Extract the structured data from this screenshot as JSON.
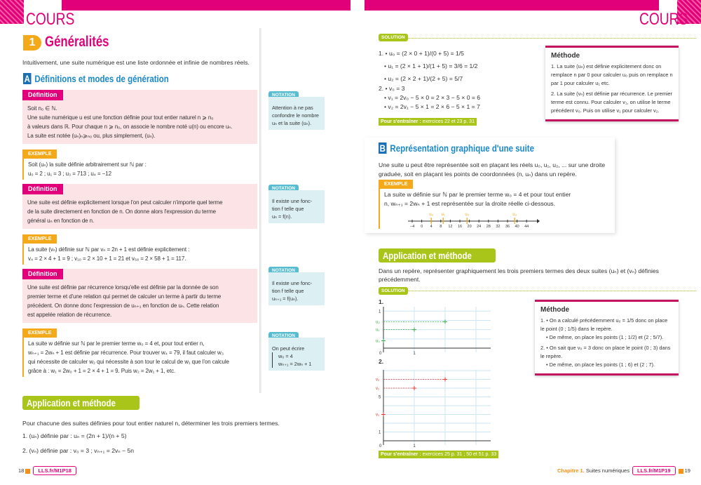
{
  "header": {
    "left_title": "COURS",
    "right_title": "COURS",
    "accent": "#e2007a"
  },
  "left": {
    "section_number": "1",
    "section_title": "Généralités",
    "intro": "Intuitivement, une suite numérique est une liste ordonnée et infinie de nombres réels.",
    "subsection_letter": "A",
    "subsection_title": "Définitions et modes de génération",
    "def_label": "Définition",
    "example_label": "EXEMPLE",
    "notation_label": "NOTATION",
    "def1": [
      "Soit n₀ ∈ ℕ.",
      "Une suite numérique u est une fonction définie pour tout entier naturel n ⩾ n₀",
      "à valeurs dans ℝ. Pour chaque n ⩾ n₀, on associe le nombre noté u(n) ou encore uₙ.",
      "La suite est notée (uₙ)ₙ⩾ₙ₀ ou, plus simplement, (uₙ)."
    ],
    "note1": [
      "Attention à ne pas",
      "confondre le nombre",
      "uₙ et la suite (uₙ)."
    ],
    "ex1": [
      "Soit (uₙ) la suite définie arbitrairement sur ℕ par :",
      "u₀ = 2 ; u₁ = 3 ; u₃ = 713 ; u₄ = −12"
    ],
    "def2": [
      "Une suite est définie explicitement lorsque l'on peut calculer n'importe quel terme",
      "de la suite directement en fonction de n. On donne alors l'expression du terme",
      "général uₙ en fonction de n."
    ],
    "note2": [
      "Il existe une fonc-",
      "tion f telle que",
      "uₙ = f(n)."
    ],
    "ex2": [
      "La suite (vₙ) définie sur ℕ par vₙ = 2n + 1 est définie explicitement :",
      "v₄ = 2 × 4 + 1 = 9 ; v₁₀ = 2 × 10 + 1 = 21 et v₅₈ = 2 × 58 + 1 = 117."
    ],
    "def3": [
      "Une suite est définie par récurrence lorsqu'elle est définie par la donnée de son",
      "premier terme et d'une relation qui permet de calculer un terme à partir du terme",
      "précédent. On donne donc l'expression de uₙ₊₁ en fonction de uₙ. Cette relation",
      "est appelée relation de récurrence."
    ],
    "note3": [
      "Il existe une fonc-",
      "tion f telle que",
      "uₙ₊₁ = f(uₙ)."
    ],
    "ex3": [
      "La suite w définie sur ℕ par le premier terme w₀ = 4 et, pour tout entier n,",
      "wₙ₊₁ = 2wₙ + 1 est définie par récurrence. Pour trouver w₄ = 79, il faut calculer w₃",
      "qui nécessite de calculer w₂ qui nécessite à son tour le calcul de w₁ que l'on calcule",
      "grâce à : w₁ = 2w₀ + 1 = 2 × 4 + 1 = 9. Puis w₂ = 2w₁ + 1, etc."
    ],
    "note4": [
      "On peut écrire",
      "w₀ = 4",
      "wₙ₊₁ = 2wₙ + 1"
    ],
    "app_title": "Application et méthode",
    "app_text": "Pour chacune des suites définies pour tout entier naturel n, déterminer les trois premiers termes.",
    "app_items": [
      "1. (uₙ) définie par : uₙ = (2n + 1)/(n + 5)",
      "2. (vₙ) définie par : v₀ = 3 ; vₙ₊₁ = 2vₙ − 5n"
    ],
    "footer": {
      "page": "18",
      "link": "LLS.fr/M1P18"
    }
  },
  "right": {
    "solution_label": "SOLUTION",
    "sol1": [
      "1. • u₀ = (2 × 0 + 1)/(0 + 5) = 1/5",
      "• u₁ = (2 × 1 + 1)/(1 + 5) = 3/6 = 1/2",
      "• u₂ = (2 × 2 + 1)/(2 + 5) = 5/7",
      "2. • v₀ = 3",
      "• v₁ = 2v₀ − 5 × 0 = 2 × 3 − 5 × 0 = 6",
      "• v₂ = 2v₁ − 5 × 1 = 2 × 6 − 5 × 1 = 7"
    ],
    "train1": {
      "label": "Pour s'entraîner :",
      "text": "exercices 22 et 23 p. 31"
    },
    "method1": {
      "title": "Méthode",
      "items": [
        "1. La suite (uₙ) est définie explicitement donc on remplace n par 0 pour calculer u₀ puis on remplace n par 1 pour calculer u₁ etc.",
        "2. La suite (vₙ) est définie par récurrence. Le premier terme est connu. Pour calculer v₁, on utilise le terme précédent v₀. Puis on utilise v₁ pour calculer v₂."
      ]
    },
    "subsection_letter": "B",
    "subsection_title": "Représentation graphique d'une suite",
    "b_text": [
      "Une suite u peut être représentée soit en plaçant les réels u₀, u₁, u₂, ... sur une droite",
      "graduée, soit en plaçant les points de coordonnées (n, uₙ) dans un repère."
    ],
    "example_label": "EXEMPLE",
    "b_ex": [
      "La suite w définie sur ℕ par le premier terme w₀ = 4 et pour tout entier",
      "n, wₙ₊₁ = 2wₙ + 1 est représentée sur la droite réelle ci-dessous."
    ],
    "numberline": {
      "ticks": [
        "−4",
        "0",
        "4",
        "8",
        "12",
        "16",
        "20",
        "24",
        "28",
        "32",
        "36",
        "40",
        "44"
      ],
      "points": [
        {
          "label": "u₀",
          "value": 4
        },
        {
          "label": "u₁",
          "value": 9
        },
        {
          "label": "u₂",
          "value": 19
        },
        {
          "label": "u₃",
          "value": 39
        }
      ]
    },
    "app_title": "Application et méthode",
    "app_text": [
      "Dans un repère, représenter graphiquement les trois premiers termes des deux suites (uₙ) et (vₙ) définies",
      "précédemment."
    ],
    "solution_label2": "SOLUTION",
    "graph1": {
      "label": "1.",
      "points": [
        {
          "label": "u₀",
          "x": 0,
          "y": 0.2
        },
        {
          "label": "u₁",
          "x": 1,
          "y": 0.5
        },
        {
          "label": "u₂",
          "x": 2,
          "y": 0.714
        }
      ],
      "ytick": "1",
      "xtick": "1",
      "origin": "0",
      "color": "#3aa84a"
    },
    "graph2": {
      "label": "2.",
      "points": [
        {
          "label": "v₀",
          "x": 0,
          "y": 3
        },
        {
          "label": "v₁",
          "x": 1,
          "y": 6
        },
        {
          "label": "v₂",
          "x": 2,
          "y": 7
        }
      ],
      "yticks": [
        "1",
        "5"
      ],
      "xtick": "1",
      "origin": "0",
      "color": "#e03c31"
    },
    "train2": {
      "label": "Pour s'entraîner :",
      "text": "exercices 25 p. 31 ; 50 et 51 p. 33"
    },
    "method2": {
      "title": "Méthode",
      "items": [
        "1. • On a calculé précédemment u₀ = 1/5 donc on place le point (0 ; 1/5) dans le repère.",
        "• De même, on place les points (1 ; 1/2) et (2 ; 5/7).",
        "2. • On sait que v₀ = 3 donc on place le point (0 ; 3) dans le repère.",
        "• De même, on place les points (1 ; 6) et (2 ; 7)."
      ]
    },
    "footer": {
      "chapter": "Chapitre 1.",
      "chapter_title": "Suites numériques",
      "link": "LLS.fr/M1P19",
      "page": "19"
    }
  }
}
